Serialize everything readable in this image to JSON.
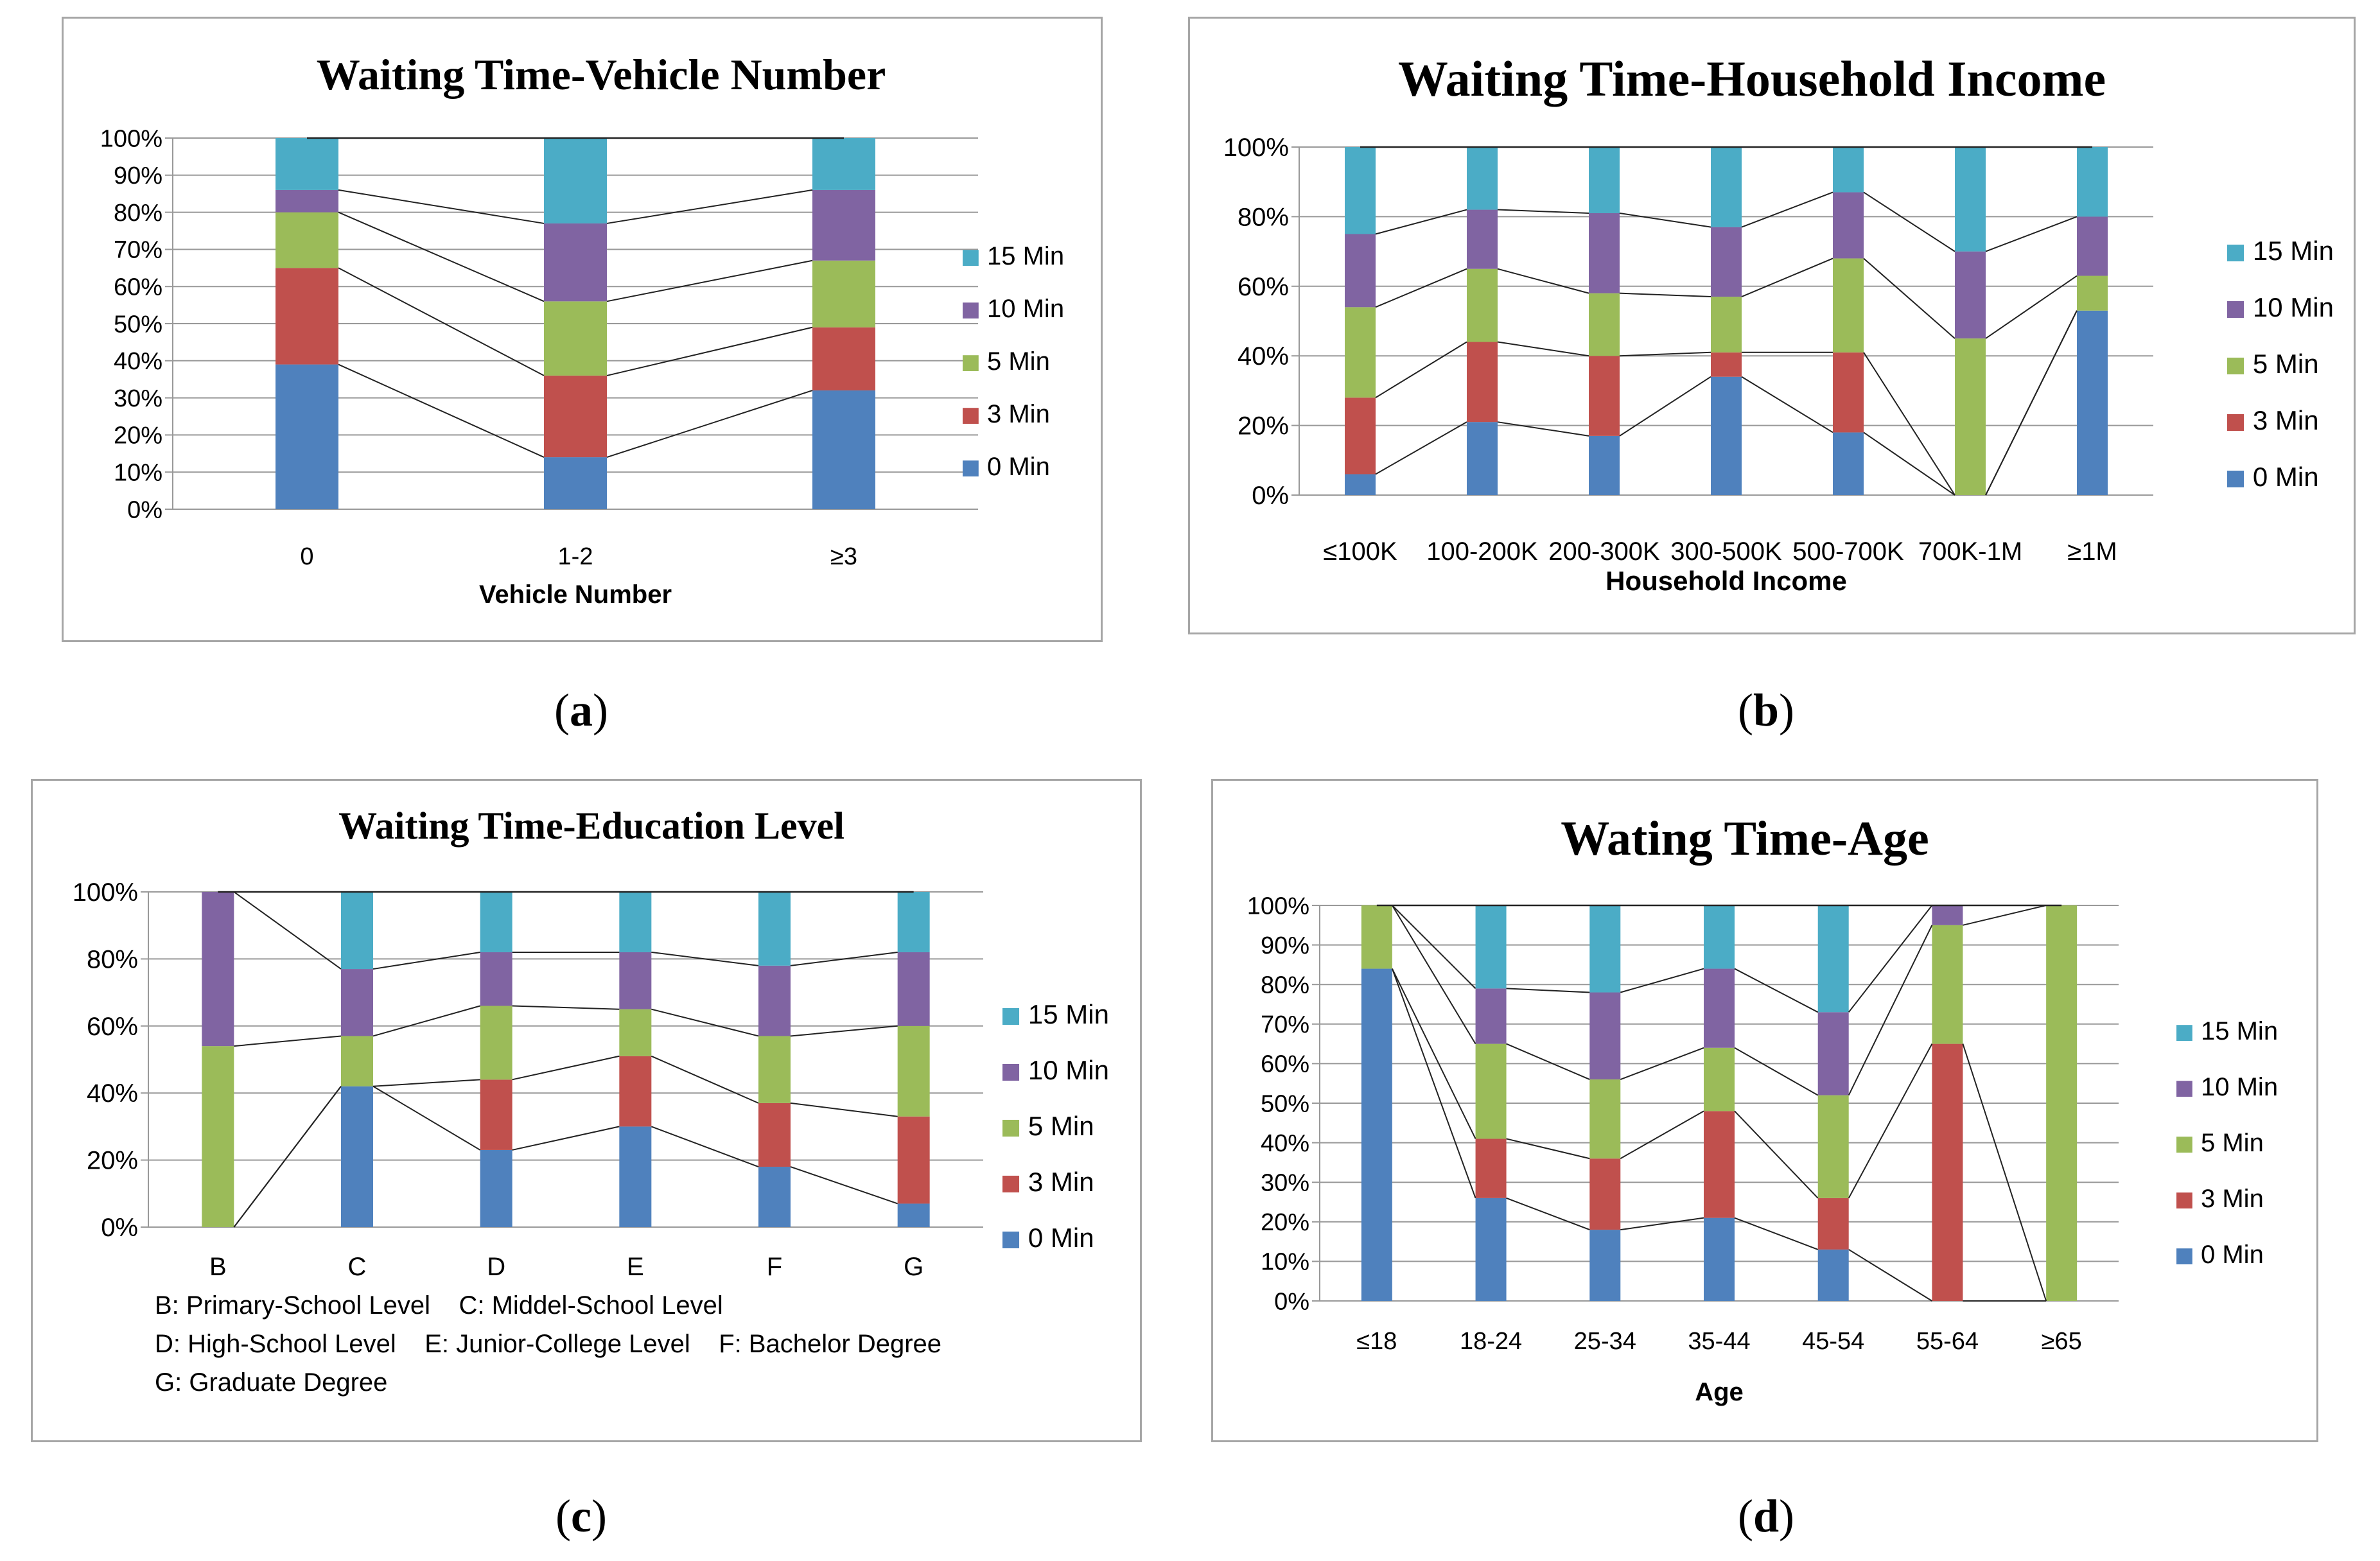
{
  "colors": {
    "0 Min": "#4f81bd",
    "3 Min": "#c0504d",
    "5 Min": "#9bbb59",
    "10 Min": "#8064a2",
    "15 Min": "#4bacc6",
    "grid": "#999999",
    "line": "#222222"
  },
  "chart_data": [
    {
      "id": "a",
      "caption": "a",
      "type": "bar",
      "stacked": true,
      "percent": true,
      "title": "Waiting Time-Vehicle Number",
      "xlabel": "Vehicle Number",
      "ylabel": "",
      "ylim": [
        0,
        100
      ],
      "y_ticks": [
        "0%",
        "10%",
        "20%",
        "30%",
        "40%",
        "50%",
        "60%",
        "70%",
        "80%",
        "90%",
        "100%"
      ],
      "categories": [
        "0",
        "1-2",
        "≥3"
      ],
      "legend_position": "right",
      "series": [
        {
          "name": "0 Min",
          "values": [
            39,
            14,
            32
          ]
        },
        {
          "name": "3 Min",
          "values": [
            26,
            22,
            17
          ]
        },
        {
          "name": "5 Min",
          "values": [
            15,
            20,
            18
          ]
        },
        {
          "name": "10 Min",
          "values": [
            6,
            21,
            19
          ]
        },
        {
          "name": "15 Min",
          "values": [
            14,
            23,
            14
          ]
        }
      ]
    },
    {
      "id": "b",
      "caption": "b",
      "type": "bar",
      "stacked": true,
      "percent": true,
      "title": "Waiting Time-Household Income",
      "xlabel": "Household Income",
      "ylabel": "",
      "ylim": [
        0,
        100
      ],
      "y_ticks": [
        "0%",
        "20%",
        "40%",
        "60%",
        "80%",
        "100%"
      ],
      "categories": [
        "≤100K",
        "100-200K",
        "200-300K",
        "300-500K",
        "500-700K",
        "700K-1M",
        "≥1M"
      ],
      "legend_position": "right",
      "series": [
        {
          "name": "0 Min",
          "values": [
            6,
            21,
            17,
            34,
            18,
            0,
            53
          ]
        },
        {
          "name": "3 Min",
          "values": [
            22,
            23,
            23,
            7,
            23,
            0,
            0
          ]
        },
        {
          "name": "5 Min",
          "values": [
            26,
            21,
            18,
            16,
            27,
            45,
            10
          ]
        },
        {
          "name": "10 Min",
          "values": [
            21,
            17,
            23,
            20,
            19,
            25,
            17
          ]
        },
        {
          "name": "15 Min",
          "values": [
            25,
            18,
            19,
            23,
            13,
            30,
            20
          ]
        }
      ]
    },
    {
      "id": "c",
      "caption": "c",
      "type": "bar",
      "stacked": true,
      "percent": true,
      "title": "Waiting Time-Education Level",
      "xlabel": "",
      "ylabel": "",
      "ylim": [
        0,
        100
      ],
      "y_ticks": [
        "0%",
        "20%",
        "40%",
        "60%",
        "80%",
        "100%"
      ],
      "categories": [
        "B",
        "C",
        "D",
        "E",
        "F",
        "G"
      ],
      "legend_position": "right",
      "notes": [
        "B: Primary-School Level    C: Middel-School Level",
        "D: High-School Level    E: Junior-College Level    F: Bachelor Degree",
        "G: Graduate Degree"
      ],
      "series": [
        {
          "name": "0 Min",
          "values": [
            0,
            42,
            23,
            30,
            18,
            7
          ]
        },
        {
          "name": "3 Min",
          "values": [
            0,
            0,
            21,
            21,
            19,
            26
          ]
        },
        {
          "name": "5 Min",
          "values": [
            54,
            15,
            22,
            14,
            20,
            27
          ]
        },
        {
          "name": "10 Min",
          "values": [
            46,
            20,
            16,
            17,
            21,
            22
          ]
        },
        {
          "name": "15 Min",
          "values": [
            0,
            23,
            18,
            18,
            22,
            18
          ]
        }
      ]
    },
    {
      "id": "d",
      "caption": "d",
      "type": "bar",
      "stacked": true,
      "percent": true,
      "title": "Wating Time-Age",
      "xlabel": "Age",
      "ylabel": "",
      "ylim": [
        0,
        100
      ],
      "y_ticks": [
        "0%",
        "10%",
        "20%",
        "30%",
        "40%",
        "50%",
        "60%",
        "70%",
        "80%",
        "90%",
        "100%"
      ],
      "categories": [
        "≤18",
        "18-24",
        "25-34",
        "35-44",
        "45-54",
        "55-64",
        "≥65"
      ],
      "legend_position": "right",
      "series": [
        {
          "name": "0 Min",
          "values": [
            84,
            26,
            18,
            21,
            13,
            0,
            0
          ]
        },
        {
          "name": "3 Min",
          "values": [
            0,
            15,
            18,
            27,
            13,
            65,
            0
          ]
        },
        {
          "name": "5 Min",
          "values": [
            16,
            24,
            20,
            16,
            26,
            30,
            100
          ]
        },
        {
          "name": "10 Min",
          "values": [
            0,
            14,
            22,
            20,
            21,
            5,
            0
          ]
        },
        {
          "name": "15 Min",
          "values": [
            0,
            21,
            22,
            16,
            27,
            0,
            0
          ]
        }
      ]
    }
  ]
}
